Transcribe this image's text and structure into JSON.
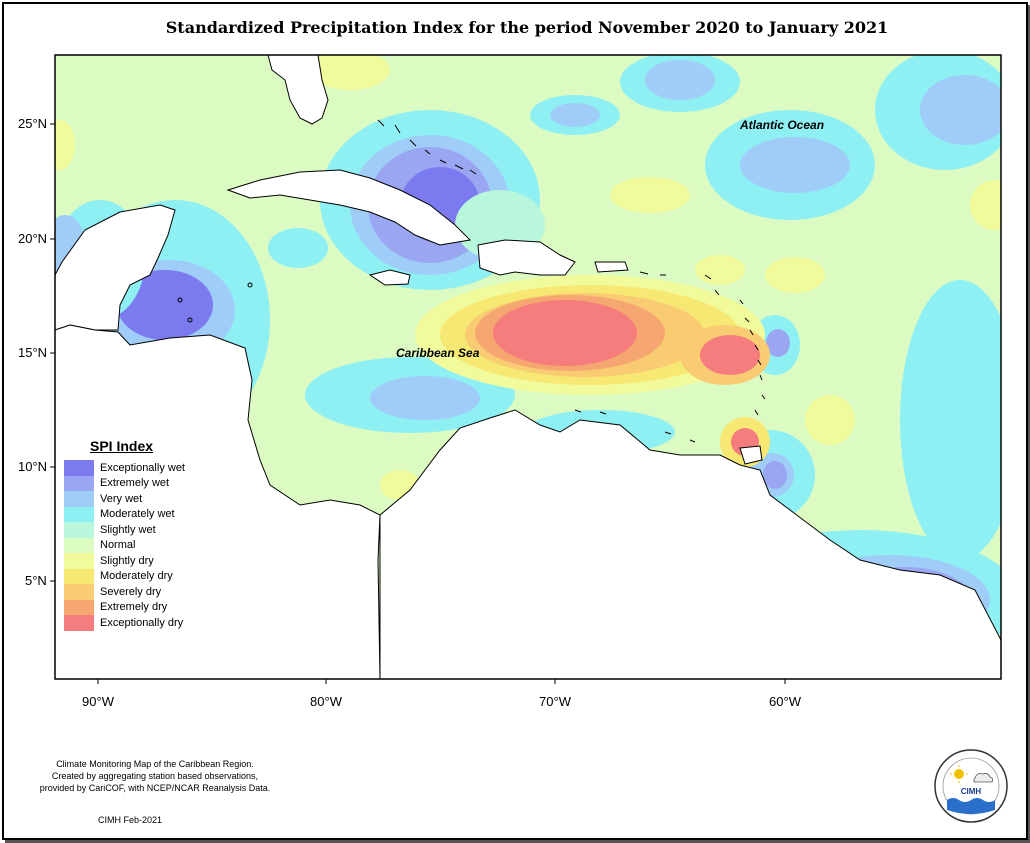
{
  "title": "Standardized Precipitation Index for the period November 2020 to January 2021",
  "labels": {
    "atlantic": "Atlantic Ocean",
    "caribbean": "Caribbean Sea"
  },
  "axes": {
    "lat_ticks": [
      "25°N",
      "20°N",
      "15°N",
      "10°N",
      "5°N"
    ],
    "lon_ticks": [
      "90°W",
      "80°W",
      "70°W",
      "60°W"
    ]
  },
  "legend": {
    "title": "SPI Index",
    "items": [
      {
        "label": "Exceptionally wet",
        "color": "#7b7bef"
      },
      {
        "label": "Extremely wet",
        "color": "#9aa6f2"
      },
      {
        "label": "Very wet",
        "color": "#9fcdf7"
      },
      {
        "label": "Moderately wet",
        "color": "#8ff0f4"
      },
      {
        "label": "Slightly wet",
        "color": "#b8f7dc"
      },
      {
        "label": "Normal",
        "color": "#dcfbc3"
      },
      {
        "label": "Slightly dry",
        "color": "#f2fb9c"
      },
      {
        "label": "Moderately dry",
        "color": "#f7e874"
      },
      {
        "label": "Severely dry",
        "color": "#f9cb72"
      },
      {
        "label": "Extremely dry",
        "color": "#f6a670"
      },
      {
        "label": "Exceptionally dry",
        "color": "#f57d7d"
      }
    ]
  },
  "credits": {
    "line1": "Climate Monitoring Map of the Caribbean Region.",
    "line2": "Created by aggregating station based observations,",
    "line3": "provided by CariCOF, with NCEP/NCAR Reanalysis Data.",
    "line4": "CIMH Feb-2021"
  },
  "logo": {
    "text": "CIMH"
  }
}
